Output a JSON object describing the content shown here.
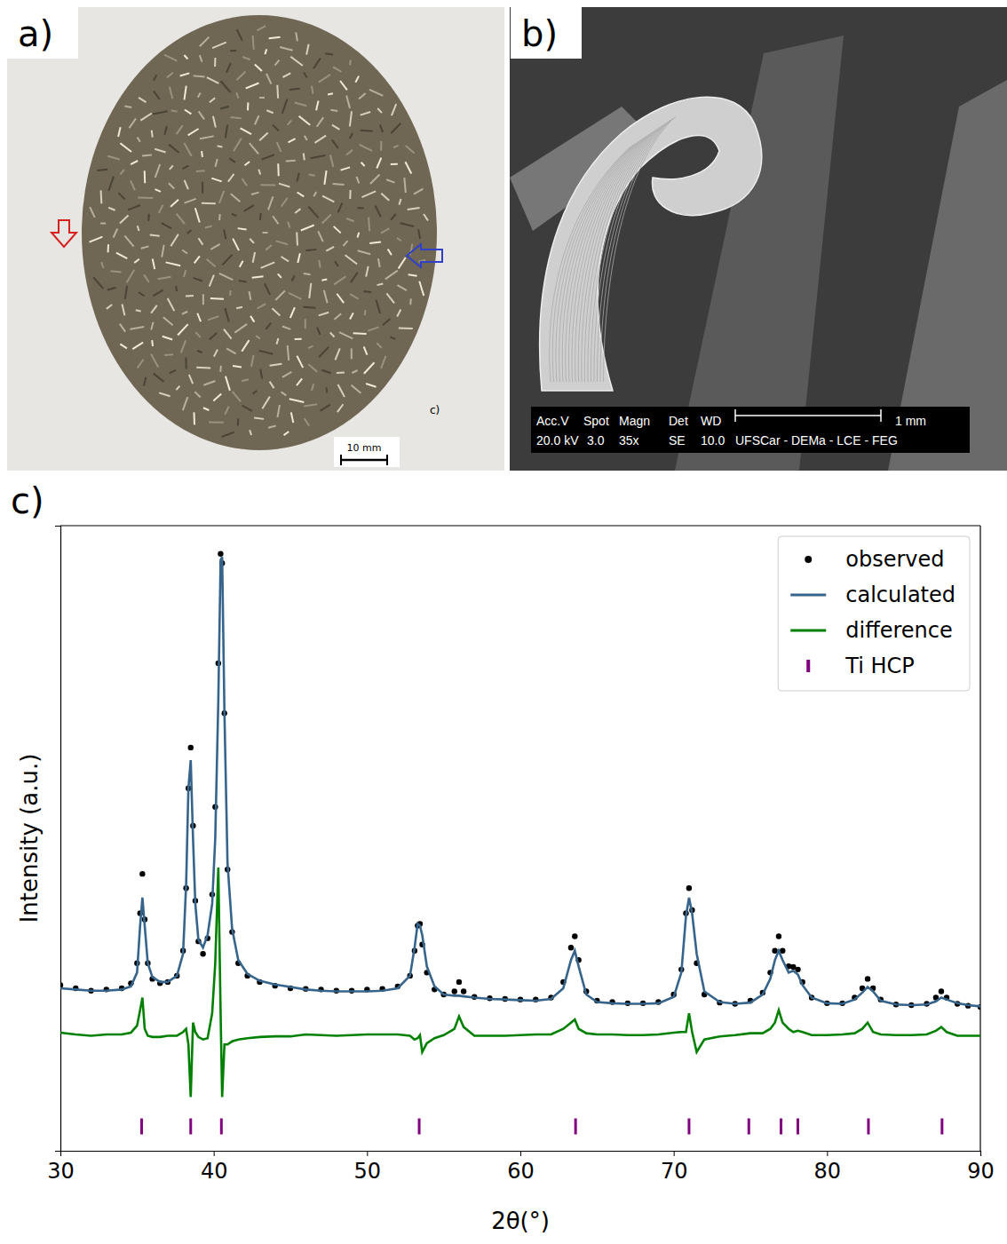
{
  "figure": {
    "panel_labels": [
      "a)",
      "b)",
      "c)"
    ],
    "photo": {
      "scale_bar": "10 mm",
      "stray_label": "c)"
    },
    "micrograph": {
      "header": [
        "Acc.V",
        "Spot",
        "Magn",
        "Det",
        "WD"
      ],
      "values": [
        "20.0 kV",
        "3.0",
        "35x",
        "SE",
        "10.0",
        "UFSCar - DEMa - LCE - FEG"
      ],
      "scale_bar": "1 mm"
    }
  },
  "chart_data": {
    "type": "line",
    "x_label": "2θ(°)",
    "y_label": "Intensity (a.u.)",
    "xlim": [
      30,
      90
    ],
    "xticks": [
      30,
      40,
      50,
      60,
      70,
      80,
      90
    ],
    "ylim": [
      0,
      100
    ],
    "tick_labels": "x",
    "grid": false,
    "legend": "upper right",
    "x": [
      30,
      31,
      32,
      33,
      34,
      34.6,
      35.0,
      35.2,
      35.35,
      35.5,
      35.7,
      36.0,
      36.5,
      37.0,
      37.6,
      38.0,
      38.2,
      38.35,
      38.5,
      38.65,
      38.8,
      39.0,
      39.3,
      39.6,
      39.9,
      40.1,
      40.3,
      40.45,
      40.55,
      40.7,
      40.9,
      41.2,
      41.6,
      42.2,
      43,
      44,
      45,
      46,
      47,
      48,
      49,
      50,
      51,
      52,
      52.8,
      53.1,
      53.3,
      53.45,
      53.6,
      53.9,
      54.4,
      55,
      55.7,
      56.0,
      56.3,
      57,
      58,
      59,
      60,
      61,
      62,
      62.8,
      63.3,
      63.55,
      63.8,
      64.3,
      65,
      66,
      67,
      68,
      69,
      70,
      70.5,
      70.8,
      71.0,
      71.2,
      71.5,
      72,
      73,
      74,
      75,
      75.8,
      76.3,
      76.6,
      76.85,
      77.1,
      77.5,
      77.8,
      78.1,
      78.4,
      79,
      80,
      81,
      81.8,
      82.3,
      82.65,
      83.0,
      83.5,
      84.5,
      85.5,
      86.5,
      87.1,
      87.45,
      87.8,
      88.5,
      89.2,
      90
    ],
    "series": [
      {
        "name": "observed",
        "type": "scatter",
        "marker": "dot",
        "color": "#000000",
        "values": [
          26.5,
          26.0,
          25.6,
          25.8,
          26.0,
          26.8,
          30.0,
          38.0,
          44.3,
          37.0,
          30.0,
          27.5,
          26.8,
          27.0,
          28.0,
          32.0,
          42.0,
          58.0,
          64.5,
          52.0,
          40.0,
          33.5,
          31.5,
          34.0,
          41.0,
          55.0,
          78.0,
          95.5,
          94.0,
          70.0,
          45.0,
          35.0,
          30.0,
          28.0,
          27.0,
          26.4,
          26.0,
          25.9,
          25.8,
          25.6,
          25.6,
          25.8,
          25.9,
          26.3,
          28.0,
          32.0,
          36.0,
          36.3,
          33.0,
          28.5,
          25.8,
          25.0,
          25.5,
          27.0,
          25.5,
          24.6,
          24.4,
          24.3,
          24.2,
          24.2,
          24.5,
          27.0,
          32.5,
          34.3,
          30.5,
          25.5,
          24.0,
          23.8,
          23.6,
          23.6,
          23.8,
          25.0,
          29.0,
          38.0,
          42.0,
          38.5,
          30.0,
          25.0,
          23.7,
          23.5,
          24.0,
          25.3,
          28.5,
          32.0,
          34.3,
          32.0,
          29.5,
          29.4,
          29.0,
          27.0,
          24.5,
          23.6,
          23.6,
          24.5,
          26.0,
          27.5,
          26.0,
          24.2,
          23.4,
          23.3,
          23.5,
          24.5,
          25.5,
          24.5,
          23.5,
          23.2,
          23.0
        ]
      },
      {
        "name": "calculated",
        "type": "line",
        "line_style": "solid",
        "color": "#36648b",
        "values": [
          26.0,
          25.8,
          25.6,
          25.6,
          25.8,
          26.3,
          28.5,
          36.0,
          40.5,
          36.0,
          30.0,
          27.8,
          27.0,
          27.0,
          28.0,
          31.5,
          42.5,
          58.0,
          62.5,
          50.0,
          39.5,
          33.8,
          32.5,
          34.5,
          39.5,
          50.0,
          72.0,
          94.5,
          95.0,
          70.0,
          46.0,
          35.5,
          30.5,
          28.3,
          27.2,
          26.6,
          26.2,
          25.8,
          25.6,
          25.5,
          25.5,
          25.5,
          25.6,
          26.0,
          28.0,
          32.5,
          36.3,
          36.0,
          34.5,
          29.5,
          26.3,
          25.0,
          24.8,
          24.8,
          24.7,
          24.5,
          24.3,
          24.2,
          24.1,
          24.0,
          24.3,
          26.0,
          30.5,
          32.0,
          29.5,
          25.0,
          23.8,
          23.6,
          23.5,
          23.5,
          23.6,
          24.6,
          28.5,
          37.5,
          40.5,
          38.0,
          31.5,
          25.5,
          23.8,
          23.5,
          23.7,
          25.0,
          27.5,
          30.5,
          32.0,
          30.5,
          28.5,
          28.8,
          28.2,
          26.5,
          24.5,
          23.6,
          23.5,
          24.2,
          25.3,
          26.2,
          25.5,
          24.0,
          23.4,
          23.3,
          23.4,
          23.9,
          24.5,
          24.2,
          23.6,
          23.3,
          23.1
        ]
      },
      {
        "name": "difference",
        "type": "line",
        "line_style": "solid",
        "color": "#008000",
        "values": [
          18.9,
          18.6,
          18.4,
          18.6,
          18.6,
          18.9,
          20.0,
          22.5,
          24.5,
          19.5,
          18.4,
          18.2,
          18.2,
          18.4,
          18.4,
          19.0,
          19.5,
          17.0,
          8.6,
          20.5,
          19.0,
          18.2,
          17.8,
          18.0,
          22.0,
          30.0,
          45.3,
          22.0,
          8.6,
          17.0,
          17.0,
          17.5,
          17.8,
          18.0,
          18.2,
          18.3,
          18.3,
          18.6,
          18.5,
          18.4,
          18.5,
          18.6,
          18.6,
          18.6,
          18.4,
          17.8,
          18.0,
          18.5,
          15.8,
          17.2,
          18.0,
          18.5,
          19.5,
          21.5,
          19.8,
          18.4,
          18.4,
          18.4,
          18.5,
          18.6,
          18.6,
          19.5,
          20.5,
          21.0,
          19.5,
          18.8,
          18.6,
          18.6,
          18.5,
          18.5,
          18.6,
          18.9,
          19.0,
          19.0,
          22.0,
          19.0,
          15.8,
          17.8,
          18.3,
          18.5,
          18.8,
          18.8,
          19.5,
          20.5,
          22.5,
          20.5,
          19.5,
          19.0,
          19.2,
          19.0,
          18.5,
          18.5,
          18.6,
          18.8,
          19.5,
          20.5,
          19.0,
          18.6,
          18.5,
          18.5,
          18.6,
          19.2,
          19.8,
          19.0,
          18.4,
          18.4,
          18.4
        ]
      },
      {
        "name": "Ti HCP",
        "type": "scatter",
        "marker": "vline",
        "color": "#800080",
        "x": [
          35.3,
          38.5,
          40.5,
          53.4,
          63.6,
          71.0,
          74.9,
          77.0,
          78.1,
          82.7,
          87.5
        ],
        "values": [
          3.9,
          3.9,
          3.9,
          3.9,
          3.9,
          3.9,
          3.9,
          3.9,
          3.9,
          3.9,
          3.9
        ]
      }
    ]
  }
}
